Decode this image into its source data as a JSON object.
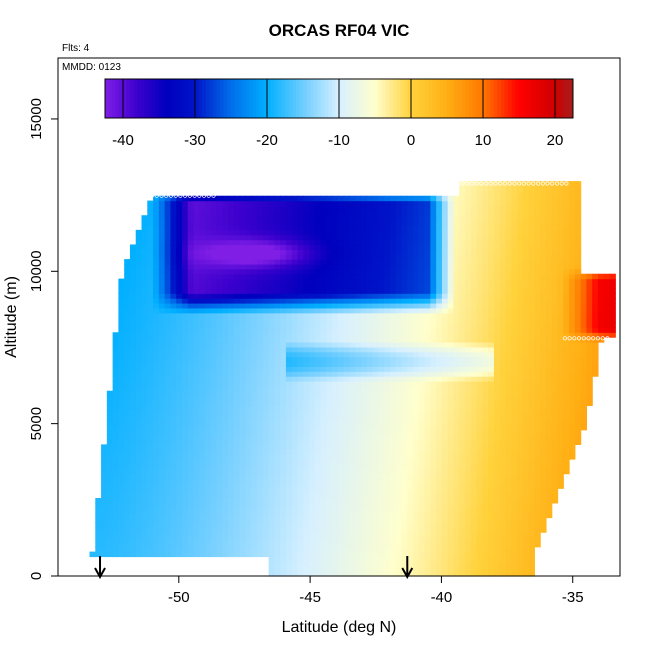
{
  "chart_data": {
    "type": "heatmap",
    "title": "ORCAS RF04 VIC",
    "annotations": [
      "Flts: 4",
      "MMDD: 0123"
    ],
    "xlabel": "Latitude (deg N)",
    "ylabel": "Altitude (m)",
    "xlim": [
      -54.6,
      -33.2
    ],
    "ylim": [
      0,
      17000
    ],
    "x_ticks": [
      -50,
      -45,
      -40,
      -35
    ],
    "x_tick_labels": [
      "-50",
      "-45",
      "-40",
      "-35"
    ],
    "y_ticks": [
      0,
      5000,
      10000,
      15000
    ],
    "y_tick_labels": [
      "0",
      "5000",
      "10000",
      "15000"
    ],
    "colorbar": {
      "range": [
        -42.5,
        22.5
      ],
      "ticks": [
        -40,
        -30,
        -20,
        -10,
        0,
        10,
        20
      ],
      "tick_labels": [
        "-40",
        "-30",
        "-20",
        "-10",
        "0",
        "10",
        "20"
      ],
      "placement": "top, inside plot"
    },
    "markers": {
      "arrows_at_latitude": [
        -53.0,
        -41.3
      ],
      "arrow_meaning": "not labeled"
    },
    "field_description": {
      "upper_cold_core": {
        "lat_range": [
          -51,
          -40
        ],
        "alt_range": [
          8800,
          12500
        ],
        "value_min": -41
      },
      "warm_north_upper": {
        "lat_range": [
          -35,
          -33.5
        ],
        "alt_range": [
          7800,
          10000
        ],
        "value_max": 20
      },
      "south_low_alt_value": -18,
      "north_low_alt_value": 8
    }
  }
}
